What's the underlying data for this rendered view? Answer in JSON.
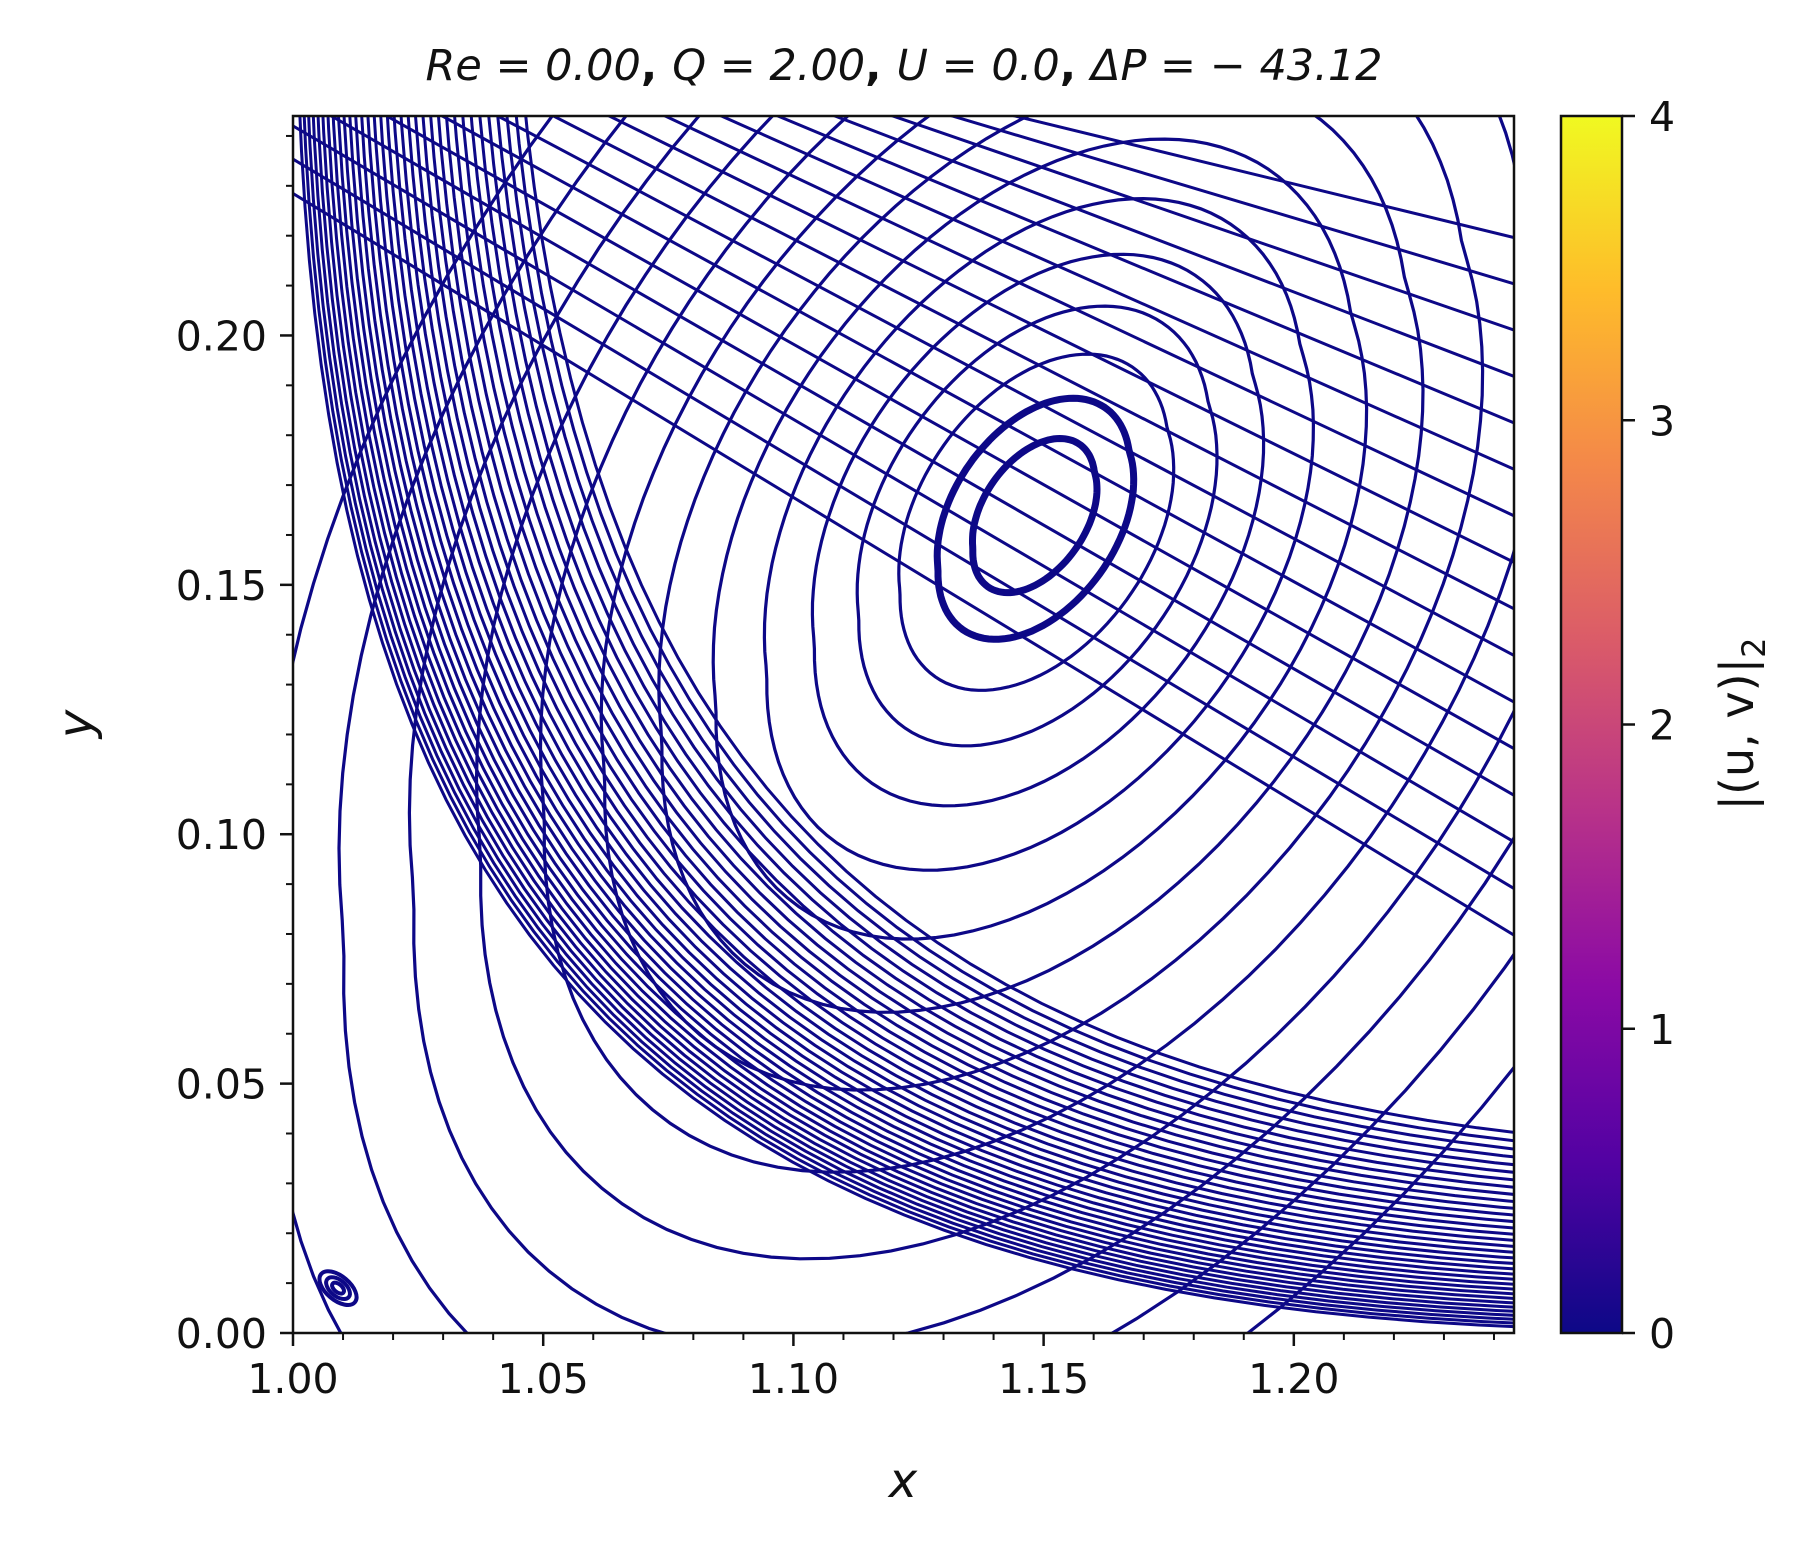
{
  "chart_data": {
    "type": "streamline",
    "title": "Re = 0.00, Q = 2.00, U = 0.0, ΔP = − 43.12",
    "title_parts": {
      "re": "Re = 0.00",
      "q": "Q = 2.00",
      "u": "U = 0.0",
      "dp": "ΔP = − 43.12"
    },
    "xlabel": "x",
    "ylabel": "y",
    "xlim": [
      1.0,
      1.244
    ],
    "ylim": [
      0.0,
      0.244
    ],
    "x_ticks": [
      "1.00",
      "1.05",
      "1.10",
      "1.15",
      "1.20"
    ],
    "y_ticks": [
      "0.00",
      "0.05",
      "0.10",
      "0.15",
      "0.20"
    ],
    "line_color": "#0d0887",
    "vortex_center": [
      1.148,
      0.165
    ],
    "corner_eddy_center": [
      1.009,
      0.009
    ],
    "colorbar": {
      "label": "|(u, v)|",
      "label_subscript": "2",
      "range": [
        0,
        4
      ],
      "ticks": [
        "0",
        "1",
        "2",
        "3",
        "4"
      ],
      "colormap": [
        "#0d0887",
        "#5302a3",
        "#8b0aa5",
        "#b83289",
        "#db5c68",
        "#f48849",
        "#febc2a",
        "#f0f921"
      ]
    }
  }
}
